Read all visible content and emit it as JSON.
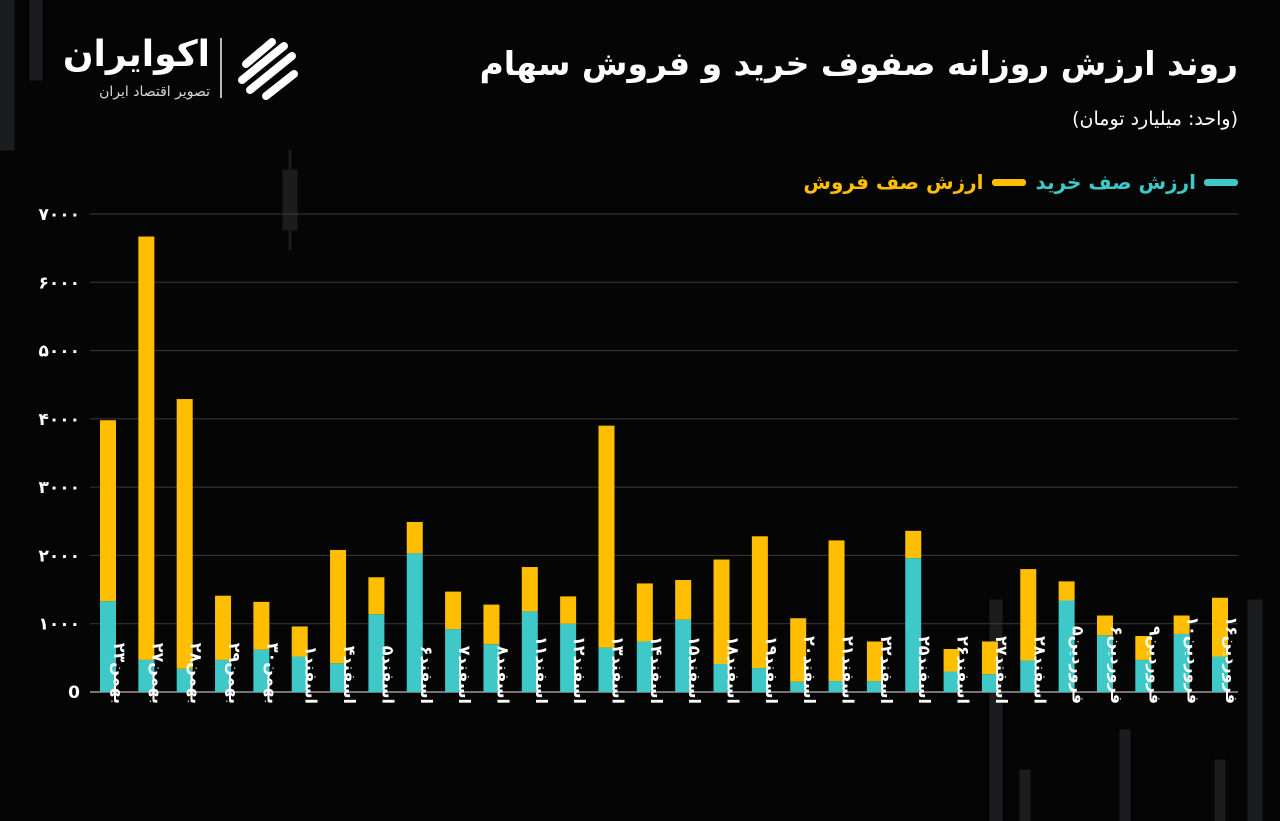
{
  "header": {
    "title": "روند ارزش روزانه صفوف خرید و فروش سهام",
    "subtitle": "(واحد: میلیارد تومان)"
  },
  "logo": {
    "name": "اکوایران",
    "tagline": "تصویر اقتصاد ایران",
    "icon": "ekoiran-logo-mark"
  },
  "colors": {
    "buy": "#3ec8c8",
    "sell": "#ffbf00",
    "background": "#050505",
    "grid": "#3a3a3a"
  },
  "chart_data": {
    "type": "bar",
    "stacked": true,
    "title": "روند ارزش روزانه صفوف خرید و فروش سهام",
    "subtitle": "(واحد: میلیارد تومان)",
    "legend_position": "top-right",
    "grid": true,
    "ylim": [
      0,
      7000
    ],
    "y_ticks": [
      0,
      1000,
      2000,
      3000,
      4000,
      5000,
      6000,
      7000
    ],
    "y_tick_labels": [
      "0",
      "۱۰۰۰",
      "۲۰۰۰",
      "۳۰۰۰",
      "۴۰۰۰",
      "۵۰۰۰",
      "۶۰۰۰",
      "۷۰۰۰"
    ],
    "categories": [
      "بهمن۲۳",
      "بهمن۲۷",
      "بهمن۲۸",
      "بهمن۲۹",
      "بهمن۳۰",
      "اسفند۱",
      "اسفند۴",
      "اسفند۵",
      "اسفند۶",
      "اسفند۷",
      "اسفند۸",
      "اسفند۱۱",
      "اسفند۱۲",
      "اسفند۱۳",
      "اسفند۱۴",
      "اسفند۱۵",
      "اسفند۱۸",
      "اسفند۱۹",
      "اسفند۲۰",
      "اسفند۲۱",
      "اسفند۲۲",
      "اسفند۲۵",
      "اسفند۲۶",
      "اسفند۲۷",
      "اسفند۲۸",
      "فروردین۵",
      "فروردین۶",
      "فروردین۹",
      "فروردین۱۰",
      "فروردین۱۶"
    ],
    "series": [
      {
        "name": "ارزش صف خرید",
        "color": "#3ec8c8",
        "values": [
          1330,
          470,
          340,
          470,
          620,
          520,
          420,
          1140,
          2030,
          920,
          700,
          1180,
          1000,
          650,
          740,
          1060,
          410,
          350,
          150,
          160,
          160,
          1960,
          300,
          260,
          460,
          1340,
          830,
          470,
          850,
          520
        ]
      },
      {
        "name": "ارزش صف فروش",
        "color": "#ffbf00",
        "values": [
          2650,
          6200,
          3950,
          940,
          700,
          440,
          1660,
          540,
          460,
          550,
          580,
          650,
          400,
          3250,
          850,
          580,
          1530,
          1930,
          930,
          2060,
          580,
          400,
          330,
          480,
          1340,
          280,
          290,
          350,
          270,
          860
        ]
      }
    ]
  }
}
